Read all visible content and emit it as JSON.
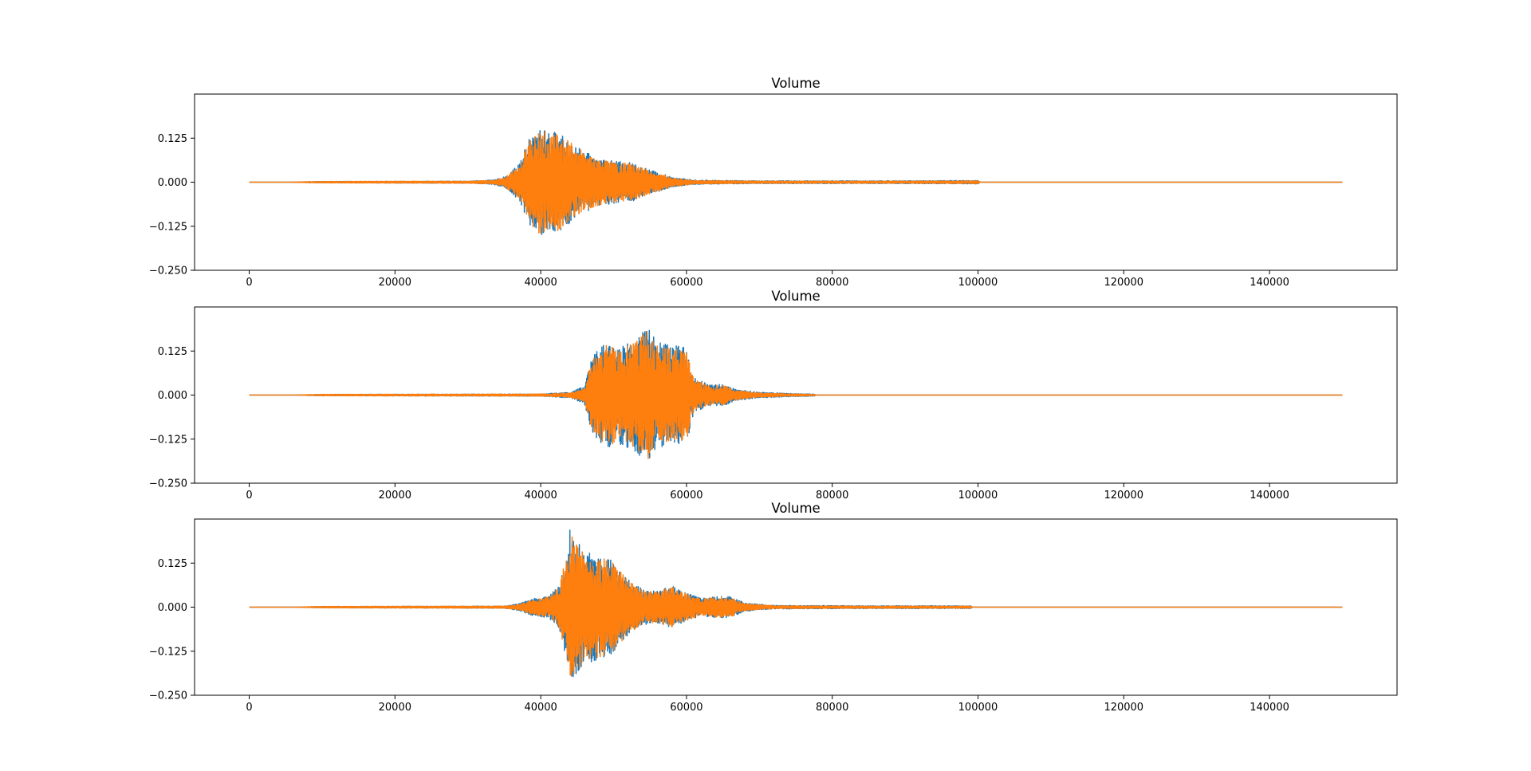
{
  "colors": {
    "series_a": "#1f77b4",
    "series_b": "#ff7f0e",
    "axes": "#000000",
    "background": "#ffffff"
  },
  "chart_data": [
    {
      "type": "line",
      "title": "Volume",
      "xlabel": "",
      "ylabel": "",
      "xlim": [
        -7500,
        157500
      ],
      "ylim": [
        -0.25,
        0.25
      ],
      "xticks": [
        0,
        20000,
        40000,
        60000,
        80000,
        100000,
        120000,
        140000
      ],
      "xtick_labels": [
        "0",
        "20000",
        "40000",
        "60000",
        "80000",
        "100000",
        "120000",
        "140000"
      ],
      "yticks": [
        -0.25,
        -0.125,
        0.0,
        0.125
      ],
      "ytick_labels": [
        "−0.250",
        "−0.125",
        "0.000",
        "0.125"
      ],
      "grid": false,
      "x_range": [
        0,
        150000
      ],
      "series": [
        {
          "color": "#1f77b4",
          "envelope": [
            [
              0,
              0.0
            ],
            [
              5000,
              0.0
            ],
            [
              10000,
              0.002
            ],
            [
              30000,
              0.003
            ],
            [
              33500,
              0.006
            ],
            [
              35000,
              0.015
            ],
            [
              37000,
              0.05
            ],
            [
              38500,
              0.13
            ],
            [
              40000,
              0.15
            ],
            [
              42500,
              0.14
            ],
            [
              45000,
              0.1
            ],
            [
              47500,
              0.07
            ],
            [
              50000,
              0.06
            ],
            [
              52500,
              0.055
            ],
            [
              55000,
              0.035
            ],
            [
              58000,
              0.015
            ],
            [
              61000,
              0.006
            ],
            [
              70000,
              0.004
            ],
            [
              90000,
              0.004
            ],
            [
              100000,
              0.005
            ],
            [
              100300,
              0.0
            ],
            [
              150000,
              0.0
            ]
          ]
        },
        {
          "color": "#ff7f0e",
          "envelope": [
            [
              0,
              0.0
            ],
            [
              5000,
              0.0
            ],
            [
              10000,
              0.002
            ],
            [
              30000,
              0.003
            ],
            [
              33500,
              0.005
            ],
            [
              35000,
              0.012
            ],
            [
              37000,
              0.045
            ],
            [
              38500,
              0.125
            ],
            [
              40000,
              0.148
            ],
            [
              42500,
              0.138
            ],
            [
              45000,
              0.098
            ],
            [
              47500,
              0.068
            ],
            [
              50000,
              0.058
            ],
            [
              52500,
              0.052
            ],
            [
              55000,
              0.033
            ],
            [
              58000,
              0.013
            ],
            [
              61000,
              0.005
            ],
            [
              70000,
              0.003
            ],
            [
              90000,
              0.003
            ],
            [
              100000,
              0.004
            ],
            [
              100300,
              0.0
            ],
            [
              150000,
              0.0
            ]
          ]
        }
      ]
    },
    {
      "type": "line",
      "title": "Volume",
      "xlabel": "",
      "ylabel": "",
      "xlim": [
        -7500,
        157500
      ],
      "ylim": [
        -0.25,
        0.25
      ],
      "xticks": [
        0,
        20000,
        40000,
        60000,
        80000,
        100000,
        120000,
        140000
      ],
      "xtick_labels": [
        "0",
        "20000",
        "40000",
        "60000",
        "80000",
        "100000",
        "120000",
        "140000"
      ],
      "yticks": [
        -0.25,
        -0.125,
        0.0,
        0.125
      ],
      "ytick_labels": [
        "−0.250",
        "−0.125",
        "0.000",
        "0.125"
      ],
      "grid": false,
      "x_range": [
        0,
        150000
      ],
      "series": [
        {
          "color": "#1f77b4",
          "envelope": [
            [
              0,
              0.0
            ],
            [
              6000,
              0.0
            ],
            [
              10000,
              0.002
            ],
            [
              40000,
              0.003
            ],
            [
              44000,
              0.008
            ],
            [
              46000,
              0.025
            ],
            [
              47000,
              0.11
            ],
            [
              49000,
              0.15
            ],
            [
              51000,
              0.14
            ],
            [
              53000,
              0.16
            ],
            [
              54500,
              0.2
            ],
            [
              56000,
              0.15
            ],
            [
              58000,
              0.14
            ],
            [
              60000,
              0.14
            ],
            [
              61000,
              0.05
            ],
            [
              63000,
              0.03
            ],
            [
              65000,
              0.03
            ],
            [
              67000,
              0.015
            ],
            [
              70000,
              0.008
            ],
            [
              75000,
              0.004
            ],
            [
              77500,
              0.003
            ],
            [
              77800,
              0.0
            ],
            [
              150000,
              0.0
            ]
          ]
        },
        {
          "color": "#ff7f0e",
          "envelope": [
            [
              0,
              0.0
            ],
            [
              6000,
              0.0
            ],
            [
              10000,
              0.002
            ],
            [
              40000,
              0.003
            ],
            [
              44000,
              0.006
            ],
            [
              46000,
              0.02
            ],
            [
              47000,
              0.1
            ],
            [
              49000,
              0.145
            ],
            [
              51000,
              0.13
            ],
            [
              53000,
              0.15
            ],
            [
              54500,
              0.19
            ],
            [
              56000,
              0.14
            ],
            [
              58000,
              0.13
            ],
            [
              60000,
              0.13
            ],
            [
              61000,
              0.045
            ],
            [
              63000,
              0.028
            ],
            [
              65000,
              0.028
            ],
            [
              67000,
              0.013
            ],
            [
              70000,
              0.006
            ],
            [
              75000,
              0.003
            ],
            [
              77500,
              0.002
            ],
            [
              77800,
              0.0
            ],
            [
              150000,
              0.0
            ]
          ]
        }
      ]
    },
    {
      "type": "line",
      "title": "Volume",
      "xlabel": "",
      "ylabel": "",
      "xlim": [
        -7500,
        157500
      ],
      "ylim": [
        -0.25,
        0.25
      ],
      "xticks": [
        0,
        20000,
        40000,
        60000,
        80000,
        100000,
        120000,
        140000
      ],
      "xtick_labels": [
        "0",
        "20000",
        "40000",
        "60000",
        "80000",
        "100000",
        "120000",
        "140000"
      ],
      "yticks": [
        -0.25,
        -0.125,
        0.0,
        0.125
      ],
      "ytick_labels": [
        "−0.250",
        "−0.125",
        "0.000",
        "0.125"
      ],
      "grid": false,
      "x_range": [
        0,
        150000
      ],
      "series": [
        {
          "color": "#1f77b4",
          "envelope": [
            [
              0,
              0.0
            ],
            [
              6000,
              0.0
            ],
            [
              10000,
              0.002
            ],
            [
              35000,
              0.003
            ],
            [
              37000,
              0.01
            ],
            [
              39000,
              0.025
            ],
            [
              41000,
              0.03
            ],
            [
              42500,
              0.06
            ],
            [
              43500,
              0.15
            ],
            [
              44000,
              0.22
            ],
            [
              46000,
              0.16
            ],
            [
              48000,
              0.15
            ],
            [
              50000,
              0.13
            ],
            [
              52000,
              0.08
            ],
            [
              54000,
              0.05
            ],
            [
              56000,
              0.045
            ],
            [
              58000,
              0.06
            ],
            [
              60000,
              0.04
            ],
            [
              62000,
              0.025
            ],
            [
              64000,
              0.03
            ],
            [
              66000,
              0.03
            ],
            [
              68000,
              0.012
            ],
            [
              72000,
              0.005
            ],
            [
              85000,
              0.004
            ],
            [
              99000,
              0.004
            ],
            [
              99300,
              0.0
            ],
            [
              150000,
              0.0
            ]
          ]
        },
        {
          "color": "#ff7f0e",
          "envelope": [
            [
              0,
              0.0
            ],
            [
              6000,
              0.0
            ],
            [
              10000,
              0.002
            ],
            [
              35000,
              0.003
            ],
            [
              37000,
              0.008
            ],
            [
              39000,
              0.022
            ],
            [
              41000,
              0.028
            ],
            [
              42500,
              0.055
            ],
            [
              43500,
              0.145
            ],
            [
              44000,
              0.21
            ],
            [
              46000,
              0.155
            ],
            [
              48000,
              0.145
            ],
            [
              50000,
              0.125
            ],
            [
              52000,
              0.075
            ],
            [
              54000,
              0.048
            ],
            [
              56000,
              0.043
            ],
            [
              58000,
              0.058
            ],
            [
              60000,
              0.038
            ],
            [
              62000,
              0.023
            ],
            [
              64000,
              0.028
            ],
            [
              66000,
              0.028
            ],
            [
              68000,
              0.01
            ],
            [
              72000,
              0.004
            ],
            [
              85000,
              0.003
            ],
            [
              99000,
              0.003
            ],
            [
              99300,
              0.0
            ],
            [
              150000,
              0.0
            ]
          ]
        }
      ]
    }
  ]
}
